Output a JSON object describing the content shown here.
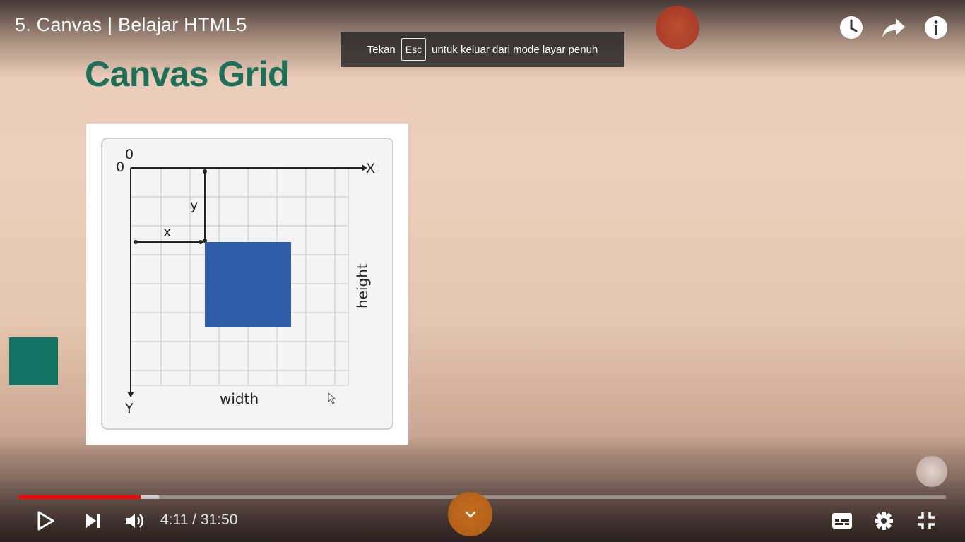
{
  "player": {
    "title": "5. Canvas | Belajar HTML5",
    "fullscreen_toast": {
      "before": "Tekan",
      "key": "Esc",
      "after": "untuk keluar dari mode layar penuh"
    },
    "time": "4:11 / 31:50",
    "progress": {
      "played_fraction": 0.1315,
      "buffered_fraction": 0.1515
    },
    "accent_color": "#ff0000",
    "top_icons": [
      "clock-icon",
      "share-icon",
      "info-icon"
    ],
    "control_icons": [
      "play-icon",
      "next-icon",
      "volume-icon",
      "subtitles-icon",
      "settings-icon",
      "exit-fullscreen-icon"
    ]
  },
  "slide": {
    "heading": "Canvas Grid",
    "heading_color": "#1c6f58",
    "diagram": {
      "origin_top": "0",
      "origin_left": "0",
      "axis_x": "X",
      "axis_y": "Y",
      "label_x": "x",
      "label_y": "y",
      "label_width": "width",
      "label_height": "height",
      "rect_color": "#2f5da7"
    }
  }
}
